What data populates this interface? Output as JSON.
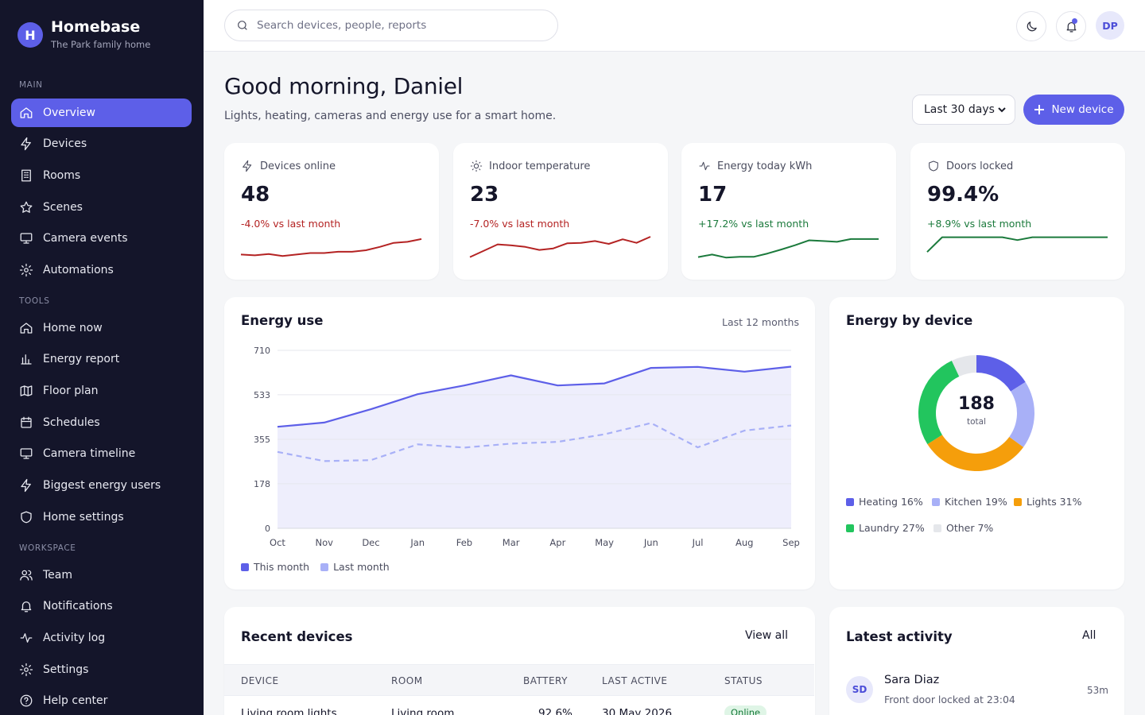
{
  "brand": {
    "initial": "H",
    "name": "Homebase",
    "subtitle": "The Park family home"
  },
  "nav": {
    "sections": [
      {
        "title": "MAIN",
        "items": [
          {
            "label": "Overview",
            "icon": "home-icon",
            "active": true
          },
          {
            "label": "Devices",
            "icon": "bolt-icon"
          },
          {
            "label": "Rooms",
            "icon": "building-icon"
          },
          {
            "label": "Scenes",
            "icon": "star-icon"
          },
          {
            "label": "Camera events",
            "icon": "monitor-icon"
          },
          {
            "label": "Automations",
            "icon": "gear-icon"
          }
        ]
      },
      {
        "title": "TOOLS",
        "items": [
          {
            "label": "Home now",
            "icon": "home-icon"
          },
          {
            "label": "Energy report",
            "icon": "bar-chart-icon"
          },
          {
            "label": "Floor plan",
            "icon": "map-icon"
          },
          {
            "label": "Schedules",
            "icon": "calendar-icon"
          },
          {
            "label": "Camera timeline",
            "icon": "monitor-icon"
          },
          {
            "label": "Biggest energy users",
            "icon": "bolt-icon"
          },
          {
            "label": "Home settings",
            "icon": "shield-icon"
          }
        ]
      },
      {
        "title": "WORKSPACE",
        "items": [
          {
            "label": "Team",
            "icon": "users-icon"
          },
          {
            "label": "Notifications",
            "icon": "bell-icon"
          },
          {
            "label": "Activity log",
            "icon": "activity-icon"
          },
          {
            "label": "Settings",
            "icon": "gear-icon"
          },
          {
            "label": "Help center",
            "icon": "help-icon"
          }
        ]
      }
    ]
  },
  "topbar": {
    "search_placeholder": "Search devices, people, reports",
    "user_initials": "DP"
  },
  "header": {
    "greeting": "Good morning, Daniel",
    "subtitle": "Lights, heating, cameras and energy use for a smart home.",
    "range": "Last 30 days",
    "new_button": "New device"
  },
  "stats": [
    {
      "label": "Devices online",
      "icon": "bolt-icon",
      "value": "48",
      "delta": "-4.0% vs last month",
      "trend": "down",
      "color": "#b42323",
      "spark": [
        3.0,
        2.7,
        3.2,
        2.4,
        3.0,
        3.6,
        3.6,
        4.1,
        4.1,
        4.7,
        6.0,
        7.6,
        8.0,
        9.1
      ]
    },
    {
      "label": "Indoor temperature",
      "icon": "sun-icon",
      "value": "23",
      "delta": "-7.0% vs last month",
      "trend": "down",
      "color": "#b42323",
      "spark": [
        2.0,
        4.5,
        7.0,
        6.6,
        6.0,
        4.8,
        5.4,
        7.4,
        7.6,
        8.3,
        7.2,
        9.0,
        7.6,
        10.0
      ]
    },
    {
      "label": "Energy today kWh",
      "icon": "activity-icon",
      "value": "17",
      "delta": "+17.2% vs last month",
      "trend": "up",
      "color": "#1b7a3c",
      "spark": [
        2.0,
        3.0,
        1.8,
        2.1,
        2.1,
        3.4,
        5.0,
        6.7,
        8.6,
        8.3,
        8.0,
        9.1,
        9.1,
        9.1
      ]
    },
    {
      "label": "Doors locked",
      "icon": "shield-icon",
      "value": "99.4%",
      "delta": "+8.9% vs last month",
      "trend": "up",
      "color": "#1b7a3c",
      "spark": [
        4.0,
        9.8,
        9.8,
        9.8,
        9.8,
        9.8,
        8.7,
        9.8,
        9.8,
        9.8,
        9.8,
        9.8,
        9.8
      ]
    }
  ],
  "energy_use": {
    "title": "Energy use",
    "period": "Last 12 months",
    "legend": [
      {
        "label": "This month",
        "color": "#5d5fe8"
      },
      {
        "label": "Last month",
        "color": "#a8b0f7"
      }
    ]
  },
  "chart_data": {
    "type": "line",
    "categories": [
      "Oct",
      "Nov",
      "Dec",
      "Jan",
      "Feb",
      "Mar",
      "Apr",
      "May",
      "Jun",
      "Jul",
      "Aug",
      "Sep"
    ],
    "yticks": [
      "710",
      "533",
      "355",
      "178",
      "0"
    ],
    "ylim": [
      0,
      710
    ],
    "series": [
      {
        "name": "This month",
        "values": [
          405,
          422,
          475,
          535,
          570,
          610,
          570,
          578,
          640,
          644,
          625,
          645
        ],
        "color": "#5d5fe8",
        "style": "solid",
        "fill": true
      },
      {
        "name": "Last month",
        "values": [
          305,
          268,
          272,
          335,
          322,
          338,
          345,
          375,
          420,
          323,
          390,
          410
        ],
        "color": "#a8b0f7",
        "style": "dashed"
      }
    ],
    "grid": true
  },
  "energy_device": {
    "title": "Energy by device",
    "total": "188",
    "total_label": "total",
    "segments": [
      {
        "label": "Heating 16%",
        "value": 16,
        "color": "#5d5fe8"
      },
      {
        "label": "Kitchen 19%",
        "value": 19,
        "color": "#a8b0f7"
      },
      {
        "label": "Lights 31%",
        "value": 31,
        "color": "#f59e0b"
      },
      {
        "label": "Laundry 27%",
        "value": 27,
        "color": "#22c55e"
      },
      {
        "label": "Other 7%",
        "value": 7,
        "color": "#e5e7eb"
      }
    ]
  },
  "recent_devices": {
    "title": "Recent devices",
    "view_all": "View all",
    "columns": [
      "DEVICE",
      "ROOM",
      "BATTERY",
      "LAST ACTIVE",
      "STATUS"
    ],
    "rows": [
      {
        "device": "Living room lights",
        "room": "Living room",
        "battery": "92.6%",
        "last_active": "30 May 2026",
        "status": "Online"
      }
    ]
  },
  "activity": {
    "title": "Latest activity",
    "link": "All",
    "items": [
      {
        "initials": "SD",
        "name": "Sara Diaz",
        "desc": "Front door locked at 23:04",
        "time": "53m"
      }
    ]
  }
}
